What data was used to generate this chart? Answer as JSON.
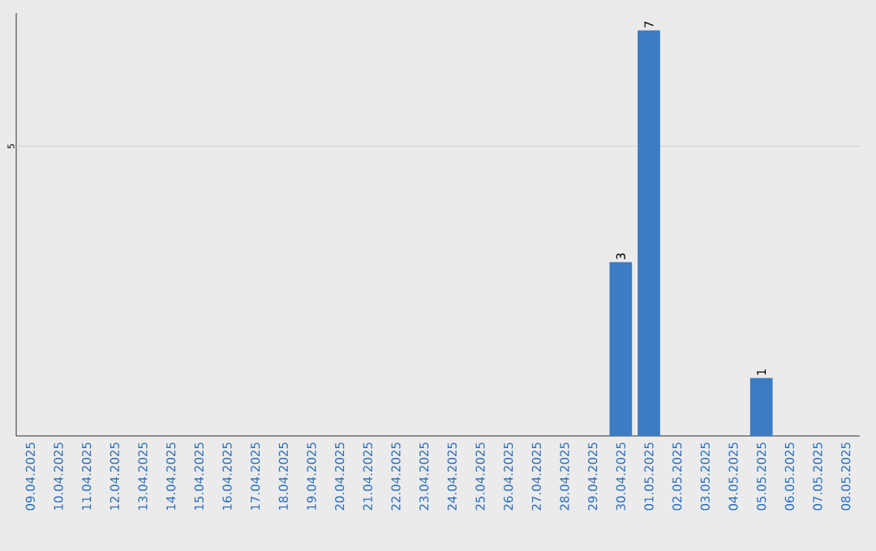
{
  "chart_data": {
    "type": "bar",
    "categories": [
      "09.04.2025",
      "10.04.2025",
      "11.04.2025",
      "12.04.2025",
      "13.04.2025",
      "14.04.2025",
      "15.04.2025",
      "16.04.2025",
      "17.04.2025",
      "18.04.2025",
      "19.04.2025",
      "20.04.2025",
      "21.04.2025",
      "22.04.2025",
      "23.04.2025",
      "24.04.2025",
      "25.04.2025",
      "26.04.2025",
      "27.04.2025",
      "28.04.2025",
      "29.04.2025",
      "30.04.2025",
      "01.05.2025",
      "02.05.2025",
      "03.05.2025",
      "04.05.2025",
      "05.05.2025",
      "06.05.2025",
      "07.05.2025",
      "08.05.2025"
    ],
    "values": [
      null,
      null,
      null,
      null,
      null,
      null,
      null,
      null,
      null,
      null,
      null,
      null,
      null,
      null,
      null,
      null,
      null,
      null,
      null,
      null,
      null,
      3,
      7,
      null,
      null,
      null,
      1,
      null,
      null,
      null
    ],
    "value_labels": [
      null,
      null,
      null,
      null,
      null,
      null,
      null,
      null,
      null,
      null,
      null,
      null,
      null,
      null,
      null,
      null,
      null,
      null,
      null,
      null,
      null,
      "3",
      "7",
      null,
      null,
      null,
      "1",
      null,
      null,
      null
    ],
    "color": "#3b7cc4",
    "ylim": [
      0,
      7.3
    ],
    "ref_lines": [
      {
        "axis": "y",
        "value": 5,
        "label": "5",
        "color": "#cccccc"
      }
    ]
  }
}
